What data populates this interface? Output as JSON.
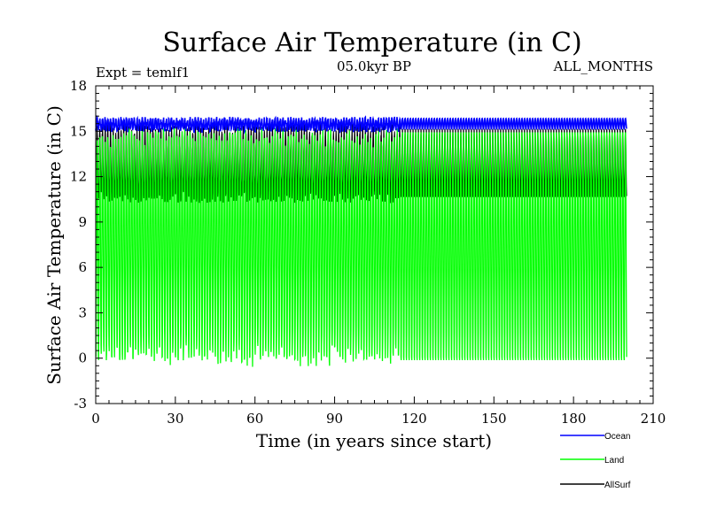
{
  "chart_data": {
    "type": "line",
    "title": "Surface Air Temperature (in C)",
    "subtitle_left": "Expt = temlf1",
    "subtitle_center": "05.0kyr BP",
    "subtitle_right": "ALL_MONTHS",
    "xlabel": "Time (in years since start)",
    "ylabel": "Surface Air Temperature (in C)",
    "xlim": [
      0,
      210
    ],
    "ylim": [
      -3,
      18
    ],
    "xticks": [
      "0",
      "30",
      "60",
      "90",
      "120",
      "150",
      "180",
      "210"
    ],
    "yticks": [
      "-3",
      "0",
      "3",
      "6",
      "9",
      "12",
      "15",
      "18"
    ],
    "x_range_of_data": [
      0,
      200
    ],
    "series": [
      {
        "name": "Ocean",
        "color": "#0000ff",
        "min": 15.0,
        "max": 16.0,
        "description_range": "monthly oscillation ~15.0 to ~15.9"
      },
      {
        "name": "Land",
        "color": "#00ff00",
        "min": -0.9,
        "max": 15.3,
        "description_range": "monthly oscillation ~-0.4 to ~15.2"
      },
      {
        "name": "AllSurf",
        "color": "#000000",
        "min": 10.5,
        "max": 15.5,
        "description_range": "monthly oscillation ~11 to ~15.3"
      }
    ],
    "legend_position": "bottom-right"
  }
}
